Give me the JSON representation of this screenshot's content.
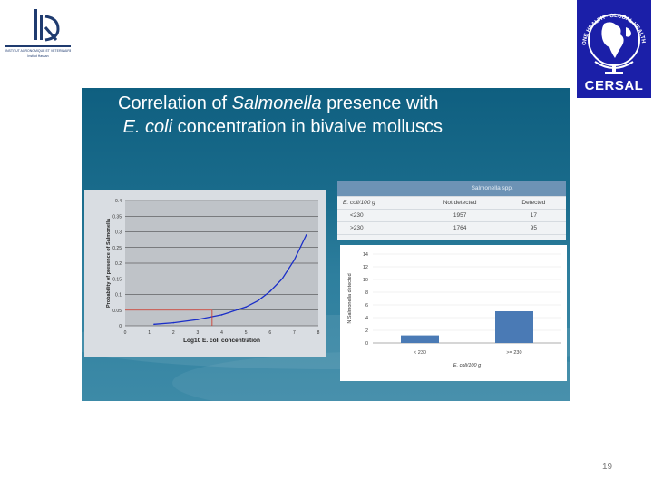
{
  "logo_left": {
    "line1": "INSTITUT AGRONOMIQUE ET VETERINAIRE",
    "line2": "Institut Hassan"
  },
  "logo_right": {
    "ring_text": "ONE HEALTH · GLOBAL HEALTH",
    "brand": "CERSAL",
    "brand_color": "#1b1fa8"
  },
  "slide": {
    "title_part1": "Correlation of ",
    "title_italic1": "Salmonella",
    "title_part2": " presence with",
    "title_italic2": "E. coli",
    "title_part3": " concentration in bivalve molluscs"
  },
  "table": {
    "group_header": "Salmonella spp.",
    "col_header_row": "E. coli/100 g",
    "col_not_detected": "Not detected",
    "col_detected": "Detected",
    "rows": [
      {
        "ecoli": "<230",
        "not_detected": "1957",
        "detected": "17"
      },
      {
        "ecoli": ">230",
        "not_detected": "1764",
        "detected": "95"
      }
    ]
  },
  "chart_data": [
    {
      "type": "line",
      "xlabel": "Log10 E. coli concentration",
      "ylabel": "Probability of presence of Salmonella",
      "x_ticks": [
        "0",
        "1",
        "2",
        "3",
        "4",
        "5",
        "6",
        "7",
        "8"
      ],
      "y_ticks": [
        "0",
        "0.05",
        "0.1",
        "0.15",
        "0.2",
        "0.25",
        "0.3",
        "0.35",
        "0.4"
      ],
      "xlim": [
        0,
        8
      ],
      "ylim": [
        0,
        0.4
      ],
      "series": [
        {
          "x": [
            1.2,
            2,
            3,
            4,
            5,
            5.5,
            6,
            6.5,
            7,
            7.5
          ],
          "y": [
            0.005,
            0.01,
            0.02,
            0.035,
            0.06,
            0.08,
            0.11,
            0.15,
            0.21,
            0.29
          ]
        }
      ],
      "reference_point": {
        "x": 3.6,
        "y": 0.05
      },
      "colors": {
        "curve": "#1a2ec8",
        "reference": "#d03020",
        "plot_bg": "#bfc3c8"
      }
    },
    {
      "type": "bar",
      "categories": [
        "< 230",
        ">= 230"
      ],
      "values": [
        1.2,
        5
      ],
      "ylabel": "N Salmonella detected",
      "xlabel": "E. coli/100 g",
      "y_ticks": [
        "0",
        "2",
        "4",
        "6",
        "8",
        "10",
        "12",
        "14"
      ],
      "ylim": [
        0,
        14
      ],
      "colors": {
        "bar": "#4a7ab5"
      }
    }
  ],
  "page_number": "19"
}
